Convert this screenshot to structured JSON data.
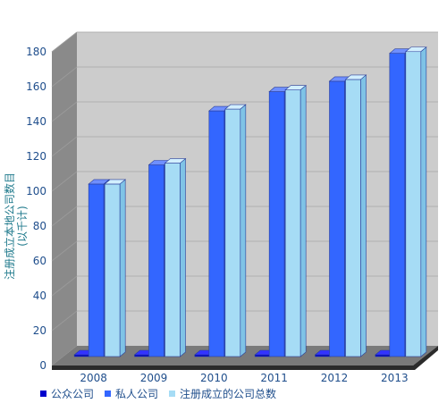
{
  "chart_data": {
    "type": "bar",
    "categories": [
      "2008",
      "2009",
      "2010",
      "2011",
      "2012",
      "2013"
    ],
    "series": [
      {
        "name": "公众公司",
        "values": [
          0,
          0,
          0,
          0,
          0,
          0
        ],
        "color": "#0000cc"
      },
      {
        "name": "私人公司",
        "values": [
          99,
          110,
          141,
          152,
          158,
          174
        ],
        "color": "#3366ff"
      },
      {
        "name": "注册成立的公司总数",
        "values": [
          99,
          111,
          142,
          153,
          159,
          175
        ],
        "color": "#a6dcf5"
      }
    ],
    "title": "",
    "xlabel": "",
    "ylabel": "注册成立本地公司数目",
    "ylabel_unit": "(以千计)",
    "ylim": [
      0,
      180
    ],
    "yticks": [
      0,
      20,
      40,
      60,
      80,
      100,
      120,
      140,
      160,
      180
    ],
    "grid": true,
    "legend_position": "bottom"
  }
}
